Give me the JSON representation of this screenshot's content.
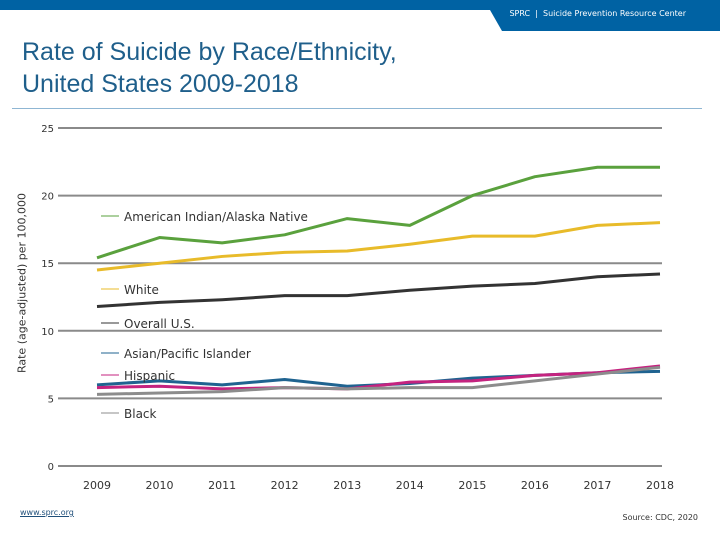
{
  "header": {
    "org": "SPRC  |  Suicide Prevention Resource Center",
    "color": "#0062a3"
  },
  "footer": {
    "site": "www.sprc.org",
    "source": "Source: CDC, 2020"
  },
  "chart_data": {
    "type": "line",
    "title": "Rate of Suicide by Race/Ethnicity, United States 2009-2018",
    "ylabel": "Rate (age-adjusted) per 100,000",
    "xlabel": "",
    "ylim": [
      0,
      25
    ],
    "yticks": [
      0,
      5,
      10,
      15,
      20,
      25
    ],
    "grid": true,
    "legend": "inline-left",
    "categories": [
      "2009",
      "2010",
      "2011",
      "2012",
      "2013",
      "2014",
      "2015",
      "2016",
      "2017",
      "2018"
    ],
    "series": [
      {
        "name": "American Indian/Alaska Native",
        "color": "#5aa13d",
        "values": [
          15.4,
          16.9,
          16.5,
          17.1,
          18.3,
          17.8,
          20.0,
          21.4,
          22.1,
          22.1
        ]
      },
      {
        "name": "White",
        "color": "#e8bb2a",
        "values": [
          14.5,
          15.0,
          15.5,
          15.8,
          15.9,
          16.4,
          17.0,
          17.0,
          17.8,
          18.0
        ]
      },
      {
        "name": "Overall U.S.",
        "color": "#333333",
        "values": [
          11.8,
          12.1,
          12.3,
          12.6,
          12.6,
          13.0,
          13.3,
          13.5,
          14.0,
          14.2
        ]
      },
      {
        "name": "Asian/Pacific Islander",
        "color": "#1f6390",
        "values": [
          6.0,
          6.3,
          6.0,
          6.4,
          5.9,
          6.1,
          6.5,
          6.7,
          6.9,
          7.0
        ]
      },
      {
        "name": "Hispanic",
        "color": "#c4237f",
        "values": [
          5.8,
          5.9,
          5.7,
          5.8,
          5.7,
          6.2,
          6.3,
          6.7,
          6.9,
          7.4
        ]
      },
      {
        "name": "Black",
        "color": "#8c8c8c",
        "values": [
          5.3,
          5.4,
          5.5,
          5.8,
          5.7,
          5.8,
          5.8,
          6.3,
          6.8,
          7.3
        ]
      }
    ]
  }
}
